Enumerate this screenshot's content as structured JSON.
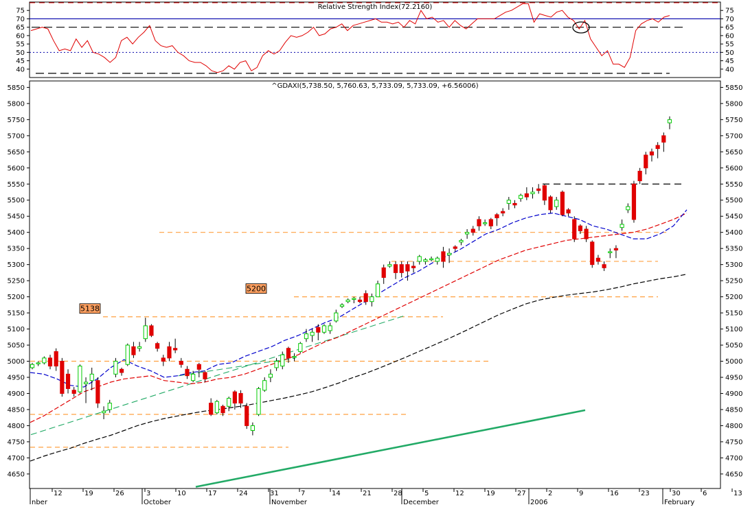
{
  "colors": {
    "rsi": "#e00000",
    "ma20": "#0000cc",
    "ma50": "#e00000",
    "ma200": "#000000",
    "up": "#00cc00",
    "down": "#e00000",
    "support": "#ffa040",
    "trend": "#22aa66",
    "guide_blue": "#0000aa",
    "tag_fill": "#ffa060"
  },
  "chart_data": [
    {
      "type": "line",
      "title": "Relative Strength Index(72.2160)",
      "ylim": [
        35,
        80
      ],
      "yticks": [
        40,
        45,
        50,
        55,
        60,
        65,
        70,
        75
      ],
      "levels": {
        "upper_dashed": 80,
        "blue": 70,
        "black_dashed": 65,
        "mid_dotted": 50,
        "lower_dashed": 37.5
      },
      "values": [
        63,
        64,
        65,
        64,
        57,
        51,
        52,
        51,
        58,
        53,
        57,
        50,
        49,
        47,
        44,
        47,
        57,
        59,
        55,
        59,
        62,
        66,
        57,
        54,
        53,
        54,
        50,
        48,
        45,
        44,
        44,
        42,
        39,
        38,
        39,
        42,
        40,
        44,
        45,
        39,
        41,
        48,
        51,
        49,
        51,
        56,
        60,
        59,
        60,
        62,
        65,
        60,
        61,
        64,
        65,
        67,
        63,
        66,
        67,
        68,
        69,
        70,
        68,
        68,
        67,
        68,
        65,
        69,
        67,
        75,
        70,
        71,
        68,
        69,
        65,
        69,
        66,
        64,
        67,
        70,
        70,
        70,
        70,
        72,
        74,
        75,
        77,
        79,
        79,
        68,
        73,
        72,
        71,
        74,
        75,
        71,
        69,
        64,
        69,
        58,
        53,
        48,
        51,
        43,
        43,
        41,
        47,
        63,
        67,
        69,
        70,
        68,
        71,
        72
      ],
      "events": [
        "circle-at-peak-pullback"
      ]
    },
    {
      "type": "candlestick",
      "title": "^GDAXI(5,738.50, 5,760.63, 5,733.09, 5,733.09, +6.56006)",
      "ylim": [
        4605,
        5870
      ],
      "yticks": [
        4650,
        4700,
        4750,
        4800,
        4850,
        4900,
        4950,
        5000,
        5050,
        5100,
        5150,
        5200,
        5250,
        5300,
        5350,
        5400,
        5450,
        5500,
        5550,
        5600,
        5650,
        5700,
        5750,
        5800,
        5850
      ],
      "x_labels": [
        "12",
        "19",
        "26",
        "3",
        "10",
        "17",
        "24",
        "31",
        "7",
        "14",
        "21",
        "28",
        "5",
        "12",
        "19",
        "27",
        "2",
        "9",
        "16",
        "23",
        "30",
        "6",
        "13"
      ],
      "months": [
        "nber",
        "October",
        "November",
        "December",
        "2006",
        "February"
      ],
      "candles": [
        [
          4980,
          4995,
          4975,
          4990
        ],
        [
          4992,
          5000,
          4985,
          4995
        ],
        [
          4995,
          5015,
          4990,
          5010
        ],
        [
          5010,
          5020,
          4975,
          4985
        ],
        [
          5030,
          5040,
          4970,
          4985
        ],
        [
          5000,
          5010,
          4890,
          4900
        ],
        [
          4960,
          4975,
          4900,
          4915
        ],
        [
          4910,
          4920,
          4890,
          4900
        ],
        [
          4905,
          4990,
          4900,
          4985
        ],
        [
          4930,
          4950,
          4870,
          4935
        ],
        [
          4940,
          4980,
          4910,
          4960
        ],
        [
          4940,
          4950,
          4855,
          4870
        ],
        [
          4840,
          4860,
          4820,
          4845
        ],
        [
          4850,
          4880,
          4840,
          4870
        ],
        [
          4960,
          5010,
          4950,
          5000
        ],
        [
          4975,
          4980,
          4955,
          4965
        ],
        [
          4990,
          5055,
          4985,
          5050
        ],
        [
          5045,
          5060,
          5010,
          5020
        ],
        [
          5040,
          5060,
          5030,
          5045
        ],
        [
          5070,
          5135,
          5060,
          5110
        ],
        [
          5110,
          5115,
          5075,
          5080
        ],
        [
          5055,
          5060,
          5030,
          5040
        ],
        [
          5010,
          5020,
          4985,
          5000
        ],
        [
          5045,
          5060,
          5000,
          5010
        ],
        [
          5040,
          5070,
          5025,
          5035
        ],
        [
          5000,
          5010,
          4980,
          4990
        ],
        [
          4975,
          4985,
          4945,
          4955
        ],
        [
          4940,
          4970,
          4935,
          4960
        ],
        [
          4990,
          4995,
          4950,
          4975
        ],
        [
          4965,
          4970,
          4935,
          4945
        ],
        [
          4870,
          4885,
          4830,
          4835
        ],
        [
          4840,
          4880,
          4835,
          4875
        ],
        [
          4860,
          4865,
          4830,
          4840
        ],
        [
          4860,
          4890,
          4845,
          4885
        ],
        [
          4905,
          4910,
          4850,
          4870
        ],
        [
          4900,
          4910,
          4855,
          4870
        ],
        [
          4860,
          4870,
          4790,
          4800
        ],
        [
          4785,
          4810,
          4770,
          4800
        ],
        [
          4835,
          4920,
          4830,
          4915
        ],
        [
          4910,
          4950,
          4905,
          4940
        ],
        [
          4950,
          4975,
          4935,
          4960
        ],
        [
          4980,
          5010,
          4970,
          5000
        ],
        [
          4985,
          5030,
          4975,
          5020
        ],
        [
          5040,
          5045,
          4995,
          5010
        ],
        [
          5015,
          5025,
          5000,
          5015
        ],
        [
          5030,
          5060,
          5025,
          5055
        ],
        [
          5070,
          5100,
          5060,
          5085
        ],
        [
          5080,
          5100,
          5060,
          5090
        ],
        [
          5105,
          5115,
          5065,
          5090
        ],
        [
          5090,
          5115,
          5085,
          5110
        ],
        [
          5095,
          5120,
          5085,
          5110
        ],
        [
          5125,
          5160,
          5120,
          5150
        ],
        [
          5170,
          5180,
          5165,
          5175
        ],
        [
          5185,
          5195,
          5180,
          5190
        ],
        [
          5195,
          5200,
          5180,
          5195
        ],
        [
          5190,
          5200,
          5180,
          5185
        ],
        [
          5210,
          5220,
          5175,
          5185
        ],
        [
          5185,
          5210,
          5170,
          5200
        ],
        [
          5200,
          5250,
          5200,
          5240
        ],
        [
          5290,
          5300,
          5240,
          5260
        ],
        [
          5295,
          5310,
          5290,
          5300
        ],
        [
          5300,
          5310,
          5255,
          5275
        ],
        [
          5300,
          5310,
          5260,
          5275
        ],
        [
          5300,
          5310,
          5250,
          5280
        ],
        [
          5295,
          5310,
          5275,
          5290
        ],
        [
          5310,
          5330,
          5300,
          5325
        ],
        [
          5310,
          5320,
          5300,
          5315
        ],
        [
          5315,
          5325,
          5310,
          5318
        ],
        [
          5310,
          5325,
          5300,
          5320
        ],
        [
          5340,
          5355,
          5290,
          5310
        ],
        [
          5330,
          5350,
          5305,
          5335
        ],
        [
          5355,
          5360,
          5340,
          5350
        ],
        [
          5370,
          5380,
          5360,
          5375
        ],
        [
          5395,
          5410,
          5380,
          5400
        ],
        [
          5410,
          5420,
          5390,
          5400
        ],
        [
          5440,
          5450,
          5405,
          5420
        ],
        [
          5430,
          5440,
          5420,
          5430
        ],
        [
          5440,
          5445,
          5410,
          5420
        ],
        [
          5455,
          5460,
          5420,
          5445
        ],
        [
          5465,
          5475,
          5450,
          5460
        ],
        [
          5490,
          5510,
          5470,
          5500
        ],
        [
          5490,
          5500,
          5475,
          5485
        ],
        [
          5505,
          5520,
          5495,
          5515
        ],
        [
          5520,
          5540,
          5500,
          5510
        ],
        [
          5520,
          5540,
          5505,
          5525
        ],
        [
          5535,
          5550,
          5520,
          5530
        ],
        [
          5545,
          5550,
          5485,
          5500
        ],
        [
          5510,
          5515,
          5460,
          5470
        ],
        [
          5480,
          5510,
          5470,
          5500
        ],
        [
          5525,
          5530,
          5450,
          5455
        ],
        [
          5470,
          5475,
          5450,
          5460
        ],
        [
          5440,
          5450,
          5370,
          5380
        ],
        [
          5420,
          5425,
          5395,
          5405
        ],
        [
          5410,
          5420,
          5370,
          5380
        ],
        [
          5370,
          5375,
          5290,
          5300
        ],
        [
          5320,
          5330,
          5300,
          5310
        ],
        [
          5300,
          5310,
          5280,
          5290
        ],
        [
          5340,
          5350,
          5320,
          5340
        ],
        [
          5350,
          5360,
          5320,
          5345
        ],
        [
          5415,
          5440,
          5405,
          5425
        ],
        [
          5470,
          5490,
          5460,
          5480
        ],
        [
          5550,
          5560,
          5430,
          5440
        ],
        [
          5590,
          5600,
          5550,
          5560
        ],
        [
          5640,
          5650,
          5580,
          5600
        ],
        [
          5650,
          5660,
          5620,
          5640
        ],
        [
          5670,
          5680,
          5630,
          5660
        ],
        [
          5700,
          5710,
          5650,
          5680
        ],
        [
          5740,
          5760,
          5720,
          5750
        ]
      ],
      "ma20_x": [
        0,
        5,
        10,
        15,
        20,
        25,
        30,
        35,
        40,
        45,
        50,
        55,
        60,
        65,
        70,
        75,
        80,
        85,
        90,
        95,
        100,
        105,
        110,
        115,
        120,
        125,
        130,
        135,
        140,
        145,
        150,
        155,
        160,
        165,
        170,
        175,
        180,
        185,
        190,
        195,
        200,
        205,
        210,
        215,
        220,
        225,
        230,
        235,
        240,
        245
      ],
      "ma20": [
        4965,
        4960,
        4945,
        4925,
        4920,
        4945,
        4980,
        5005,
        4985,
        4970,
        4950,
        4955,
        4965,
        4970,
        4990,
        4995,
        5015,
        5030,
        5045,
        5065,
        5080,
        5100,
        5120,
        5135,
        5160,
        5185,
        5210,
        5235,
        5260,
        5280,
        5305,
        5325,
        5345,
        5370,
        5395,
        5410,
        5430,
        5445,
        5455,
        5460,
        5450,
        5440,
        5420,
        5410,
        5395,
        5380,
        5380,
        5395,
        5420,
        5470
      ],
      "ma50": [
        4810,
        4830,
        4855,
        4880,
        4905,
        4920,
        4935,
        4945,
        4950,
        4955,
        4940,
        4935,
        4930,
        4935,
        4945,
        4950,
        4960,
        4975,
        4990,
        5005,
        5020,
        5040,
        5060,
        5075,
        5095,
        5115,
        5135,
        5155,
        5175,
        5195,
        5215,
        5235,
        5255,
        5275,
        5295,
        5315,
        5330,
        5345,
        5355,
        5365,
        5375,
        5380,
        5385,
        5390,
        5395,
        5400,
        5410,
        5425,
        5440,
        5460
      ],
      "ma200": [
        4690,
        4705,
        4718,
        4730,
        4745,
        4758,
        4770,
        4785,
        4800,
        4812,
        4822,
        4830,
        4838,
        4845,
        4850,
        4856,
        4862,
        4870,
        4878,
        4886,
        4895,
        4905,
        4918,
        4932,
        4948,
        4962,
        4978,
        4995,
        5012,
        5030,
        5048,
        5066,
        5085,
        5105,
        5125,
        5145,
        5162,
        5178,
        5190,
        5198,
        5205,
        5210,
        5215,
        5222,
        5230,
        5240,
        5248,
        5256,
        5262,
        5270
      ],
      "support_lines": [
        {
          "y": 5400,
          "x0": 232,
          "x1": 970
        },
        {
          "y": 5310,
          "x0": 570,
          "x1": 958
        },
        {
          "y": 5200,
          "x0": 428,
          "x1": 958
        },
        {
          "y": 5138,
          "x0": 150,
          "x1": 645
        },
        {
          "y": 5000,
          "x0": 44,
          "x1": 715
        },
        {
          "y": 4835,
          "x0": 44,
          "x1": 595
        },
        {
          "y": 4733,
          "x0": 44,
          "x1": 420
        }
      ],
      "resistance_line": {
        "y": 5550,
        "x0": 790,
        "x1": 992
      },
      "trendlines": [
        {
          "from": [
            45,
            4772
          ],
          "to": [
            590,
            5142
          ],
          "style": "dashed"
        },
        {
          "from": [
            285,
            4610
          ],
          "to": [
            852,
            4848
          ],
          "style": "solid-thick"
        },
        {
          "from": [
            260,
            4955
          ],
          "to": [
            430,
            5010
          ],
          "style": "dashed"
        }
      ],
      "annotations": [
        {
          "text": "5138",
          "price": 5138,
          "x": 130
        },
        {
          "text": "5200",
          "price": 5200,
          "x": 372
        }
      ]
    }
  ]
}
